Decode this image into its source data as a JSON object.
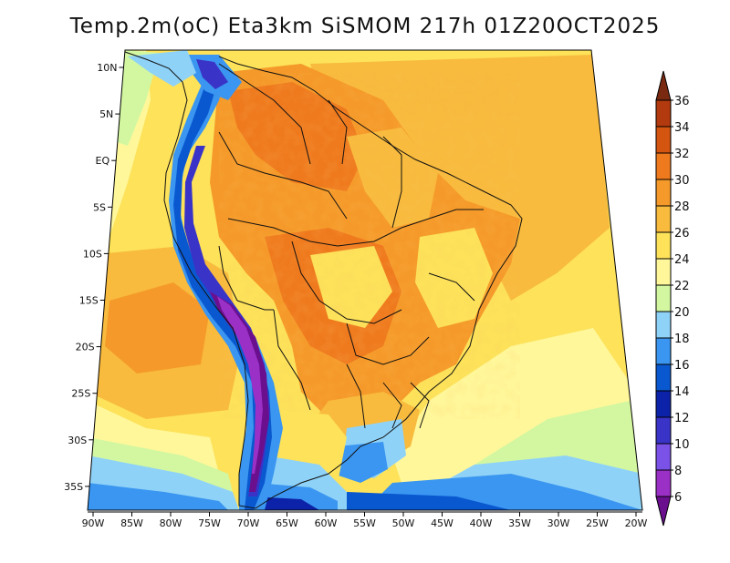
{
  "title": "Temp.2m(oC) Eta3km SiSMOM 217h 01Z20OCT2025",
  "lon_ticks": [
    "90W",
    "85W",
    "80W",
    "75W",
    "70W",
    "65W",
    "60W",
    "55W",
    "50W",
    "45W",
    "40W",
    "35W",
    "30W",
    "25W",
    "20W"
  ],
  "lat_ticks": [
    "10N",
    "5N",
    "EQ",
    "5S",
    "10S",
    "15S",
    "20S",
    "25S",
    "30S",
    "35S"
  ],
  "colorbar": {
    "labels": [
      "6",
      "8",
      "10",
      "12",
      "14",
      "16",
      "18",
      "20",
      "22",
      "24",
      "26",
      "28",
      "30",
      "32",
      "34",
      "36"
    ],
    "colors": [
      "#6a0f8e",
      "#9b30c6",
      "#7a52e8",
      "#3a33c8",
      "#0c22a8",
      "#0a58d0",
      "#3a96f0",
      "#8fd2f8",
      "#d2f7a0",
      "#fff79a",
      "#fde25a",
      "#f8bb3e",
      "#f59a2a",
      "#ef7a1e",
      "#d35510",
      "#b23a0e",
      "#7a2a10"
    ]
  }
}
